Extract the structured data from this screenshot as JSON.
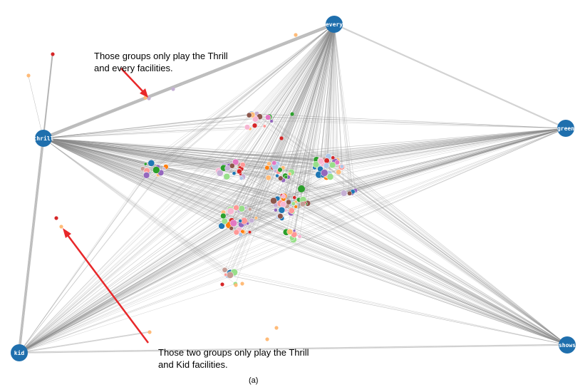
{
  "hubs": [
    {
      "key": "every",
      "label": "every"
    },
    {
      "key": "thrill",
      "label": "thrill"
    },
    {
      "key": "green",
      "label": "green"
    },
    {
      "key": "kid",
      "label": "kid"
    },
    {
      "key": "shows",
      "label": "shows"
    }
  ],
  "annotations": {
    "top": {
      "line1": "Those groups only play the Thrill",
      "line2": "and every facilities."
    },
    "bottom": {
      "line1": "Those two groups only play the Thrill",
      "line2": "and Kid facilities."
    }
  },
  "caption": "(a)",
  "colors": {
    "hub": "#1f6fad",
    "edge": "#8c8c8c",
    "arrow": "#e8282a",
    "group_palette": [
      "#1f77b4",
      "#ff7f0e",
      "#2ca02c",
      "#d62728",
      "#9467bd",
      "#8c564b",
      "#e377c2",
      "#aec7e8",
      "#ffbb78",
      "#98df8a",
      "#ff9896",
      "#c5b0d5",
      "#c49c94",
      "#f7b6d2"
    ]
  }
}
